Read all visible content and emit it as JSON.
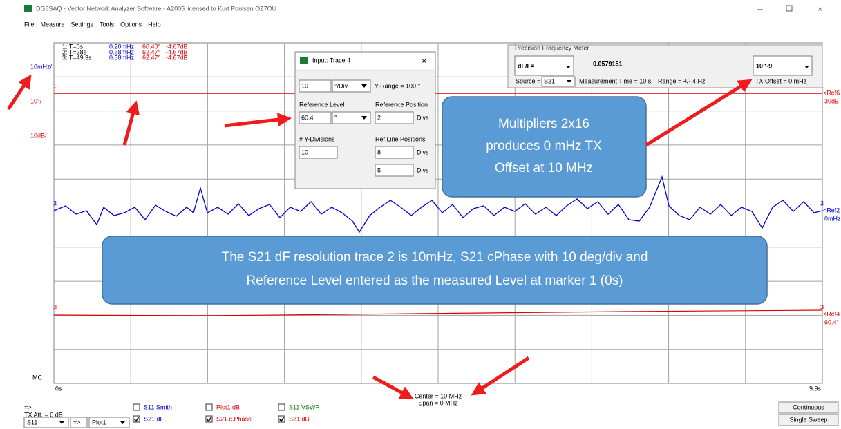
{
  "window": {
    "title": "DG8SAQ  -  Vector Network Analyzer Software  - A2005 licensed to Kurt Poulsen OZ7OU"
  },
  "menu": [
    "File",
    "Measure",
    "Settings",
    "Tools",
    "Options",
    "Help"
  ],
  "scale_labels": [
    {
      "text": "10mHz/",
      "color": "#0000d0"
    },
    {
      "text": "10°/",
      "color": "#e00000"
    },
    {
      "text": "10dB/",
      "color": "#e00000"
    }
  ],
  "markers": [
    [
      "1: T=0s",
      "0.20mHz",
      "60.40°",
      "-4.67dB"
    ],
    [
      "2: T=28s",
      "0.58mHz",
      "62.47°",
      "-4.67dB"
    ],
    [
      "3: T=49.3s",
      "0.58mHz",
      "62.47°",
      "-4.67dB"
    ]
  ],
  "ref_labels": [
    {
      "tag": "1",
      "name": "<Ref6",
      "level": "30dB",
      "color": "#e00000"
    },
    {
      "tag": "3",
      "name": "<Ref2",
      "level": "0mHz",
      "color": "#0000d0"
    },
    {
      "tag": "3",
      "name": "<Ref4",
      "level": "60.4°",
      "color": "#e00000"
    }
  ],
  "dialog": {
    "title": "Input: Trace 4",
    "div_value": "10",
    "div_unit": "°/Div",
    "y_range": "Y-Range = 100 °",
    "ref_level_label": "Reference Level",
    "ref_level": "60.4",
    "ref_level_unit": "°",
    "ref_pos_label": "Reference Position",
    "ref_pos": "2",
    "divs": "Divs",
    "ydiv_label": "# Y-Divisions",
    "ydiv": "10",
    "refline_label": "Ref.Line Positions",
    "refline": [
      "8",
      "5"
    ]
  },
  "freq_meter": {
    "title": "Precision Frequency Meter",
    "mode": "dF/F=",
    "value": "0.0579151",
    "exponent": "10^-9",
    "source_label": "Source =",
    "source": "S21",
    "meas_time": "Measurement Time = 10 s",
    "range": "Range = +/- 4 Hz",
    "tx_offset": "TX Offset = 0 mHz"
  },
  "callouts": [
    [
      "Multipliers 2x16",
      "produces 0 mHz TX",
      "Offset at 10 MHz"
    ],
    [
      "The S21 dF resolution trace 2 is 10mHz, S21 cPhase with 10 deg/div and",
      "Reference Level entered as the measured Level at marker 1 (0s)"
    ]
  ],
  "axis": {
    "mc": "MC",
    "start": "0s",
    "end": "9.9s",
    "center": "Center = 10 MHz",
    "span": "Span = 0 MHz"
  },
  "controls": {
    "arrow": "=>",
    "tx_att": "TX Att. = 0 dB",
    "port": "S11",
    "go": "=>",
    "plot": "Plot1",
    "checkboxes": [
      {
        "label": "S11  Smith",
        "checked": false,
        "color": "#0000d0"
      },
      {
        "label": "S21  dF",
        "checked": true,
        "color": "#0000d0"
      },
      {
        "label": "Plot1  dB",
        "checked": false,
        "color": "#e00000"
      },
      {
        "label": "S21  c.Phase",
        "checked": true,
        "color": "#e00000"
      },
      {
        "label": "S11  VSWR",
        "checked": false,
        "color": "#008000"
      },
      {
        "label": "S21  dB",
        "checked": true,
        "color": "#e00000"
      }
    ],
    "buttons": [
      "Continuous",
      "Single Sweep"
    ]
  }
}
